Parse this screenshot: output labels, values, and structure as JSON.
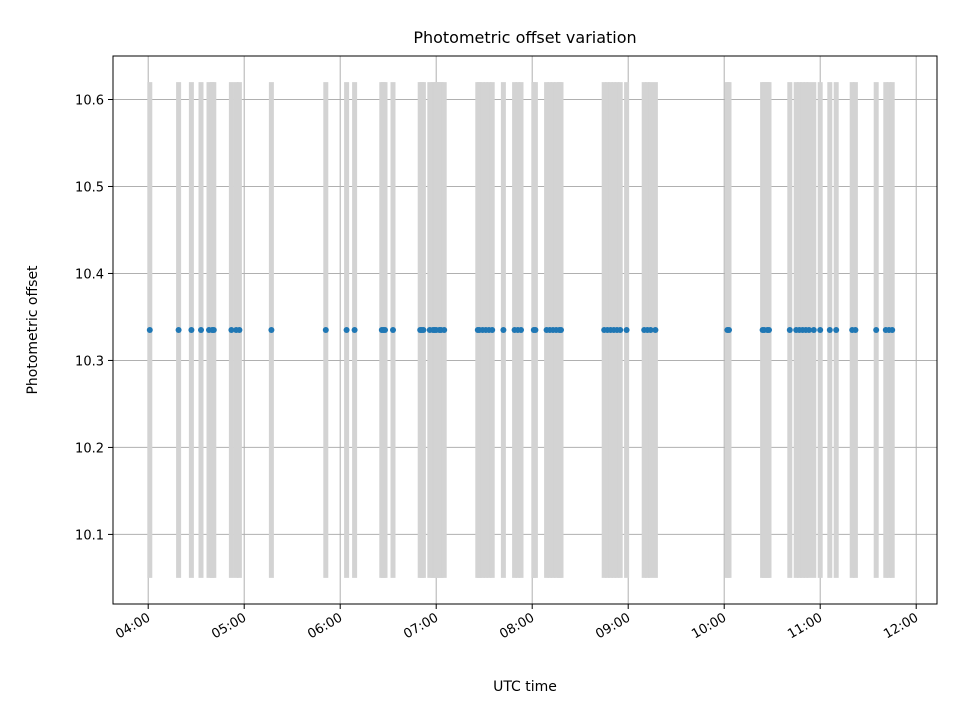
{
  "chart_data": {
    "type": "scatter",
    "title": "Photometric offset variation",
    "xlabel": "UTC time",
    "ylabel": "Photometric offset",
    "x_tick_labels": [
      "04:00",
      "05:00",
      "06:00",
      "07:00",
      "08:00",
      "09:00",
      "10:00",
      "11:00",
      "12:00"
    ],
    "y_tick_labels": [
      "10.1",
      "10.2",
      "10.3",
      "10.4",
      "10.5",
      "10.6"
    ],
    "xlim": [
      "03:38",
      "12:13"
    ],
    "ylim": [
      10.02,
      10.65
    ],
    "grid": true,
    "point_color": "#1f77b4",
    "bar_color": "#d3d3d3",
    "bar_range": [
      10.05,
      10.62
    ],
    "series": [
      {
        "x": [
          "04:01",
          "04:19",
          "04:27",
          "04:33",
          "04:38",
          "04:40",
          "04:41",
          "04:52",
          "04:55",
          "04:57",
          "05:17",
          "05:51",
          "06:04",
          "06:09",
          "06:26",
          "06:27",
          "06:28",
          "06:33",
          "06:50",
          "06:51",
          "06:52",
          "06:56",
          "06:58",
          "06:59",
          "07:00",
          "07:02",
          "07:03",
          "07:05",
          "07:26",
          "07:27",
          "07:29",
          "07:31",
          "07:33",
          "07:35",
          "07:42",
          "07:49",
          "07:51",
          "07:53",
          "08:01",
          "08:02",
          "08:09",
          "08:11",
          "08:13",
          "08:15",
          "08:17",
          "08:18",
          "08:45",
          "08:47",
          "08:49",
          "08:51",
          "08:53",
          "08:55",
          "08:59",
          "09:10",
          "09:12",
          "09:14",
          "09:17",
          "10:02",
          "10:03",
          "10:24",
          "10:25",
          "10:27",
          "10:28",
          "10:41",
          "10:45",
          "10:47",
          "10:49",
          "10:51",
          "10:53",
          "10:56",
          "11:00",
          "11:06",
          "11:10",
          "11:20",
          "11:22",
          "11:35",
          "11:41",
          "11:43",
          "11:45"
        ],
        "y": [
          10.335,
          10.335,
          10.335,
          10.335,
          10.335,
          10.335,
          10.335,
          10.335,
          10.335,
          10.335,
          10.335,
          10.335,
          10.335,
          10.335,
          10.335,
          10.335,
          10.335,
          10.335,
          10.335,
          10.335,
          10.335,
          10.335,
          10.335,
          10.335,
          10.335,
          10.335,
          10.335,
          10.335,
          10.335,
          10.335,
          10.335,
          10.335,
          10.335,
          10.335,
          10.335,
          10.335,
          10.335,
          10.335,
          10.335,
          10.335,
          10.335,
          10.335,
          10.335,
          10.335,
          10.335,
          10.335,
          10.335,
          10.335,
          10.335,
          10.335,
          10.335,
          10.335,
          10.335,
          10.335,
          10.335,
          10.335,
          10.335,
          10.335,
          10.335,
          10.335,
          10.335,
          10.335,
          10.335,
          10.335,
          10.335,
          10.335,
          10.335,
          10.335,
          10.335,
          10.335,
          10.335,
          10.335,
          10.335,
          10.335,
          10.335,
          10.335,
          10.335,
          10.335,
          10.335
        ]
      }
    ]
  }
}
